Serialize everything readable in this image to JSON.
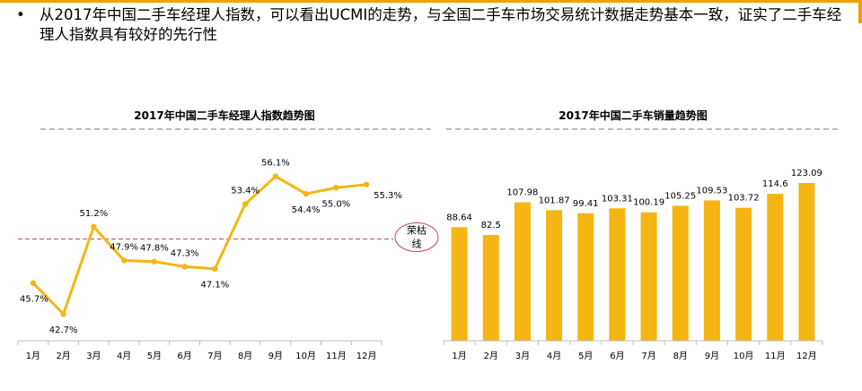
{
  "headline": {
    "bullet": "•",
    "text": "从2017年中国二手车经理人指数，可以看出UCMI的走势，与全国二手车市场交易统计数据走势基本一致，证实了二手车经理人指数具有较好的先行性"
  },
  "colors": {
    "series": "#f5b614",
    "rule": "#a6a6a6",
    "threshold": "#c9455a",
    "axis": "#bfbfbf",
    "accent": "#f0a000"
  },
  "chart_data": [
    {
      "type": "line",
      "title": "2017年中国二手车经理人指数趋势图",
      "categories": [
        "1月",
        "2月",
        "3月",
        "4月",
        "5月",
        "6月",
        "7月",
        "8月",
        "9月",
        "10月",
        "11月",
        "12月"
      ],
      "values": [
        45.7,
        42.7,
        51.2,
        47.9,
        47.8,
        47.3,
        47.1,
        53.4,
        56.1,
        54.4,
        55.0,
        55.3
      ],
      "value_labels": [
        "45.7%",
        "42.7%",
        "51.2%",
        "47.9%",
        "47.8%",
        "47.3%",
        "47.1%",
        "53.4%",
        "56.1%",
        "54.4%",
        "55.0%",
        "55.3%"
      ],
      "label_positions": [
        "below",
        "below",
        "above",
        "above",
        "above",
        "above",
        "below",
        "above",
        "above",
        "below",
        "below",
        "right"
      ],
      "threshold": {
        "value": 50,
        "label_line1": "荣枯",
        "label_line2": "线"
      },
      "ylim": [
        40,
        60
      ],
      "grid": false
    },
    {
      "type": "bar",
      "title": "2017年中国二手车销量趋势图",
      "categories": [
        "1月",
        "2月",
        "3月",
        "4月",
        "5月",
        "6月",
        "7月",
        "8月",
        "9月",
        "10月",
        "11月",
        "12月"
      ],
      "values": [
        88.64,
        82.5,
        107.98,
        101.87,
        99.41,
        103.31,
        100.19,
        105.25,
        109.53,
        103.72,
        114.6,
        123.09
      ],
      "value_labels": [
        "88.64",
        "82.5",
        "107.98",
        "101.87",
        "99.41",
        "103.31",
        "100.19",
        "105.25",
        "109.53",
        "103.72",
        "114.6",
        "123.09"
      ],
      "ylim": [
        0,
        135
      ],
      "grid": false
    }
  ]
}
